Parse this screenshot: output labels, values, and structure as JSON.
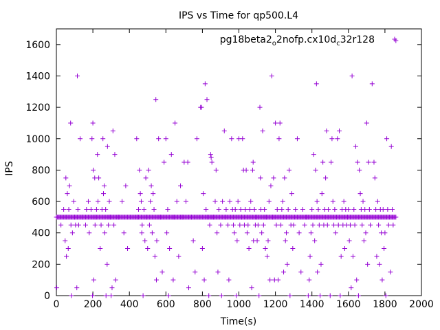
{
  "chart_data": {
    "type": "scatter",
    "title": "IPS vs Time for qp500.L4",
    "xlabel": "Time(s)",
    "ylabel": "IPS",
    "xlim": [
      0,
      2000
    ],
    "ylim": [
      0,
      1700
    ],
    "xticks": [
      0,
      200,
      400,
      600,
      800,
      1000,
      1200,
      1400,
      1600,
      1800,
      2000
    ],
    "xtick_labels": [
      "0",
      "200",
      "400",
      "600",
      "800",
      "1000",
      "1200",
      "1400",
      "1600",
      "1800",
      "2000"
    ],
    "yticks": [
      0,
      200,
      400,
      600,
      800,
      1000,
      1200,
      1400,
      1600
    ],
    "ytick_labels": [
      "0",
      "200",
      "400",
      "600",
      "800",
      "1000",
      "1200",
      "1400",
      "1600"
    ],
    "grid": false,
    "legend_position": "top-right",
    "marker": "plus",
    "series": [
      {
        "name": "pg18beta2_o2nofp.cx10d_c32r128",
        "legend_parts": [
          {
            "text": "pg18beta2",
            "sub": false
          },
          {
            "text": "o",
            "sub": true
          },
          {
            "text": "2nofp.cx10d",
            "sub": false
          },
          {
            "text": "c",
            "sub": true
          },
          {
            "text": "32r128",
            "sub": false
          }
        ],
        "color": "#9400d3",
        "baseline": {
          "y": 500,
          "x_start": 0,
          "x_end": 1860,
          "x_step": 5
        },
        "points": [
          [
            2,
            50
          ],
          [
            15,
            500
          ],
          [
            25,
            450
          ],
          [
            40,
            550
          ],
          [
            48,
            350
          ],
          [
            52,
            750
          ],
          [
            55,
            250
          ],
          [
            60,
            650
          ],
          [
            65,
            300
          ],
          [
            68,
            550
          ],
          [
            72,
            700
          ],
          [
            78,
            1100
          ],
          [
            80,
            450
          ],
          [
            82,
            0
          ],
          [
            88,
            400
          ],
          [
            95,
            600
          ],
          [
            100,
            500
          ],
          [
            105,
            450
          ],
          [
            112,
            50
          ],
          [
            115,
            1400
          ],
          [
            118,
            550
          ],
          [
            122,
            450
          ],
          [
            130,
            1000
          ],
          [
            145,
            500
          ],
          [
            160,
            450
          ],
          [
            165,
            550
          ],
          [
            175,
            600
          ],
          [
            180,
            400
          ],
          [
            190,
            550
          ],
          [
            195,
            1000
          ],
          [
            198,
            0
          ],
          [
            200,
            1100
          ],
          [
            202,
            800
          ],
          [
            205,
            100
          ],
          [
            210,
            750
          ],
          [
            212,
            450
          ],
          [
            215,
            500
          ],
          [
            220,
            550
          ],
          [
            225,
            900
          ],
          [
            228,
            600
          ],
          [
            232,
            750
          ],
          [
            240,
            300
          ],
          [
            245,
            450
          ],
          [
            250,
            550
          ],
          [
            255,
            1000
          ],
          [
            258,
            650
          ],
          [
            262,
            700
          ],
          [
            265,
            400
          ],
          [
            270,
            550
          ],
          [
            272,
            0
          ],
          [
            278,
            200
          ],
          [
            280,
            950
          ],
          [
            285,
            450
          ],
          [
            290,
            600
          ],
          [
            295,
            500
          ],
          [
            300,
            0
          ],
          [
            305,
            50
          ],
          [
            310,
            1050
          ],
          [
            315,
            450
          ],
          [
            320,
            900
          ],
          [
            325,
            100
          ],
          [
            340,
            500
          ],
          [
            360,
            600
          ],
          [
            370,
            400
          ],
          [
            380,
            700
          ],
          [
            390,
            300
          ],
          [
            440,
            1000
          ],
          [
            445,
            500
          ],
          [
            450,
            550
          ],
          [
            455,
            800
          ],
          [
            460,
            650
          ],
          [
            465,
            600
          ],
          [
            468,
            400
          ],
          [
            470,
            450
          ],
          [
            475,
            0
          ],
          [
            480,
            550
          ],
          [
            485,
            350
          ],
          [
            490,
            750
          ],
          [
            495,
            500
          ],
          [
            500,
            300
          ],
          [
            505,
            800
          ],
          [
            510,
            450
          ],
          [
            515,
            600
          ],
          [
            520,
            700
          ],
          [
            525,
            400
          ],
          [
            530,
            650
          ],
          [
            535,
            550
          ],
          [
            540,
            250
          ],
          [
            545,
            1250
          ],
          [
            548,
            100
          ],
          [
            550,
            350
          ],
          [
            560,
            1000
          ],
          [
            570,
            500
          ],
          [
            580,
            150
          ],
          [
            590,
            850
          ],
          [
            600,
            1000
          ],
          [
            605,
            400
          ],
          [
            610,
            550
          ],
          [
            615,
            0
          ],
          [
            620,
            300
          ],
          [
            630,
            900
          ],
          [
            640,
            100
          ],
          [
            645,
            500
          ],
          [
            650,
            1100
          ],
          [
            660,
            600
          ],
          [
            670,
            250
          ],
          [
            680,
            700
          ],
          [
            690,
            500
          ],
          [
            700,
            850
          ],
          [
            710,
            600
          ],
          [
            720,
            850
          ],
          [
            725,
            50
          ],
          [
            740,
            500
          ],
          [
            750,
            350
          ],
          [
            760,
            150
          ],
          [
            770,
            1000
          ],
          [
            790,
            1200
          ],
          [
            795,
            1200
          ],
          [
            800,
            300
          ],
          [
            805,
            650
          ],
          [
            810,
            100
          ],
          [
            815,
            1350
          ],
          [
            820,
            550
          ],
          [
            825,
            1250
          ],
          [
            830,
            500
          ],
          [
            835,
            0
          ],
          [
            840,
            450
          ],
          [
            845,
            900
          ],
          [
            848,
            880
          ],
          [
            852,
            850
          ],
          [
            860,
            500
          ],
          [
            870,
            600
          ],
          [
            875,
            800
          ],
          [
            880,
            400
          ],
          [
            885,
            150
          ],
          [
            890,
            550
          ],
          [
            900,
            450
          ],
          [
            905,
            0
          ],
          [
            910,
            600
          ],
          [
            920,
            1050
          ],
          [
            925,
            500
          ],
          [
            930,
            550
          ],
          [
            940,
            450
          ],
          [
            945,
            100
          ],
          [
            950,
            600
          ],
          [
            960,
            1000
          ],
          [
            965,
            550
          ],
          [
            970,
            450
          ],
          [
            975,
            400
          ],
          [
            980,
            550
          ],
          [
            985,
            0
          ],
          [
            990,
            350
          ],
          [
            995,
            600
          ],
          [
            1000,
            1000
          ],
          [
            1005,
            450
          ],
          [
            1010,
            550
          ],
          [
            1015,
            500
          ],
          [
            1020,
            1000
          ],
          [
            1025,
            800
          ],
          [
            1030,
            450
          ],
          [
            1035,
            550
          ],
          [
            1040,
            800
          ],
          [
            1045,
            400
          ],
          [
            1050,
            450
          ],
          [
            1055,
            300
          ],
          [
            1060,
            550
          ],
          [
            1065,
            600
          ],
          [
            1070,
            50
          ],
          [
            1075,
            800
          ],
          [
            1078,
            850
          ],
          [
            1080,
            350
          ],
          [
            1085,
            550
          ],
          [
            1090,
            450
          ],
          [
            1095,
            500
          ],
          [
            1100,
            350
          ],
          [
            1105,
            450
          ],
          [
            1110,
            0
          ],
          [
            1115,
            1200
          ],
          [
            1118,
            750
          ],
          [
            1120,
            550
          ],
          [
            1125,
            400
          ],
          [
            1130,
            1050
          ],
          [
            1135,
            450
          ],
          [
            1140,
            550
          ],
          [
            1145,
            300
          ],
          [
            1150,
            500
          ],
          [
            1155,
            250
          ],
          [
            1160,
            350
          ],
          [
            1165,
            600
          ],
          [
            1170,
            100
          ],
          [
            1175,
            700
          ],
          [
            1180,
            1400
          ],
          [
            1185,
            500
          ],
          [
            1190,
            750
          ],
          [
            1195,
            100
          ],
          [
            1200,
            1100
          ],
          [
            1205,
            450
          ],
          [
            1210,
            550
          ],
          [
            1215,
            100
          ],
          [
            1220,
            1000
          ],
          [
            1225,
            1100
          ],
          [
            1230,
            450
          ],
          [
            1235,
            550
          ],
          [
            1240,
            600
          ],
          [
            1245,
            150
          ],
          [
            1250,
            750
          ],
          [
            1255,
            350
          ],
          [
            1260,
            400
          ],
          [
            1265,
            200
          ],
          [
            1270,
            550
          ],
          [
            1275,
            800
          ],
          [
            1280,
            0
          ],
          [
            1285,
            450
          ],
          [
            1290,
            650
          ],
          [
            1295,
            300
          ],
          [
            1300,
            450
          ],
          [
            1310,
            550
          ],
          [
            1320,
            1000
          ],
          [
            1330,
            400
          ],
          [
            1340,
            150
          ],
          [
            1350,
            550
          ],
          [
            1360,
            450
          ],
          [
            1370,
            500
          ],
          [
            1380,
            0
          ],
          [
            1385,
            100
          ],
          [
            1390,
            250
          ],
          [
            1395,
            400
          ],
          [
            1400,
            550
          ],
          [
            1405,
            450
          ],
          [
            1410,
            900
          ],
          [
            1415,
            350
          ],
          [
            1420,
            800
          ],
          [
            1425,
            1350
          ],
          [
            1428,
            600
          ],
          [
            1430,
            150
          ],
          [
            1435,
            550
          ],
          [
            1440,
            450
          ],
          [
            1445,
            0
          ],
          [
            1450,
            200
          ],
          [
            1455,
            650
          ],
          [
            1460,
            850
          ],
          [
            1465,
            450
          ],
          [
            1470,
            550
          ],
          [
            1475,
            750
          ],
          [
            1480,
            1050
          ],
          [
            1485,
            450
          ],
          [
            1490,
            550
          ],
          [
            1500,
            0
          ],
          [
            1505,
            850
          ],
          [
            1510,
            1000
          ],
          [
            1515,
            600
          ],
          [
            1520,
            450
          ],
          [
            1525,
            550
          ],
          [
            1530,
            400
          ],
          [
            1540,
            1000
          ],
          [
            1545,
            450
          ],
          [
            1550,
            1050
          ],
          [
            1555,
            0
          ],
          [
            1560,
            250
          ],
          [
            1565,
            550
          ],
          [
            1570,
            450
          ],
          [
            1575,
            600
          ],
          [
            1580,
            300
          ],
          [
            1585,
            550
          ],
          [
            1590,
            450
          ],
          [
            1595,
            500
          ],
          [
            1600,
            550
          ],
          [
            1605,
            350
          ],
          [
            1610,
            450
          ],
          [
            1615,
            50
          ],
          [
            1620,
            1400
          ],
          [
            1625,
            250
          ],
          [
            1630,
            550
          ],
          [
            1635,
            450
          ],
          [
            1640,
            950
          ],
          [
            1645,
            100
          ],
          [
            1650,
            850
          ],
          [
            1655,
            0
          ],
          [
            1660,
            800
          ],
          [
            1665,
            650
          ],
          [
            1670,
            550
          ],
          [
            1675,
            450
          ],
          [
            1680,
            600
          ],
          [
            1685,
            350
          ],
          [
            1690,
            550
          ],
          [
            1695,
            400
          ],
          [
            1700,
            1100
          ],
          [
            1705,
            200
          ],
          [
            1710,
            850
          ],
          [
            1715,
            550
          ],
          [
            1720,
            450
          ],
          [
            1730,
            1350
          ],
          [
            1740,
            850
          ],
          [
            1745,
            750
          ],
          [
            1750,
            550
          ],
          [
            1755,
            250
          ],
          [
            1760,
            600
          ],
          [
            1765,
            450
          ],
          [
            1770,
            200
          ],
          [
            1775,
            550
          ],
          [
            1780,
            400
          ],
          [
            1785,
            100
          ],
          [
            1790,
            550
          ],
          [
            1795,
            300
          ],
          [
            1800,
            400
          ],
          [
            1805,
            0
          ],
          [
            1810,
            1000
          ],
          [
            1815,
            550
          ],
          [
            1820,
            450
          ],
          [
            1830,
            150
          ],
          [
            1835,
            950
          ],
          [
            1840,
            550
          ],
          [
            1845,
            450
          ],
          [
            1860,
            1625
          ]
        ]
      }
    ]
  }
}
